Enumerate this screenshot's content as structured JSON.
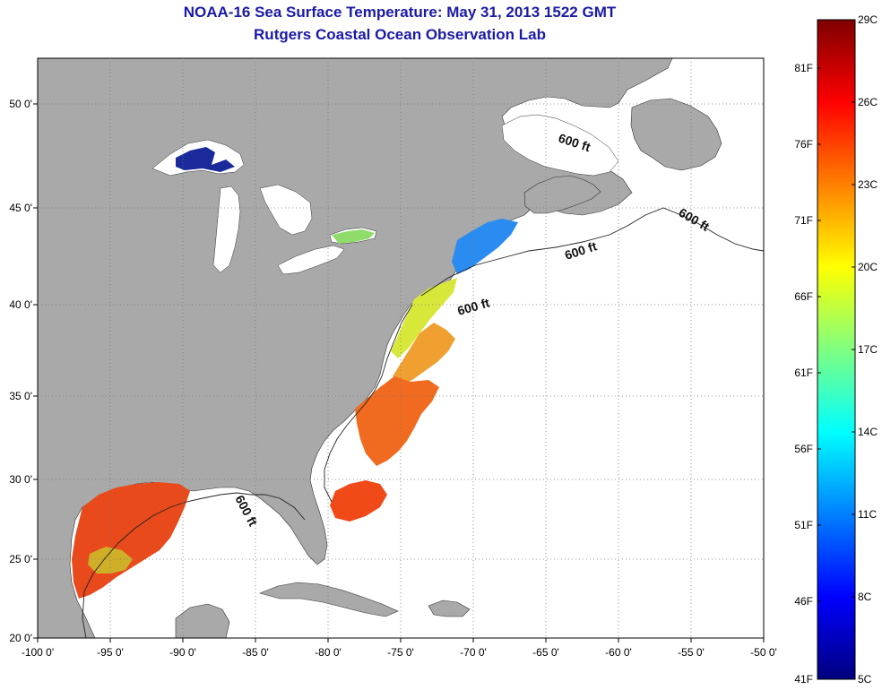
{
  "title": "NOAA-16 Sea Surface Temperature:  May 31, 2013 1522 GMT",
  "subtitle": "Rutgers Coastal Ocean Observation Lab",
  "map": {
    "lon_ticks": [
      "-100 0'",
      "-95 0'",
      "-90 0'",
      "-85 0'",
      "-80 0'",
      "-75 0'",
      "-70 0'",
      "-65 0'",
      "-60 0'",
      "-55 0'",
      "-50 0'"
    ],
    "lat_ticks": [
      "50 0'",
      "45 0'",
      "40 0'",
      "35 0'",
      "30 0'",
      "25 0'",
      "20 0'"
    ],
    "contour_labels": [
      "600 ft",
      "600 ft",
      "600 ft",
      "600 ft",
      "600 ft"
    ],
    "colors": {
      "land": "#a9a9a9",
      "ocean": "#ffffff",
      "grid": "#777777"
    }
  },
  "colorbar": {
    "celsius_labels": [
      "29C",
      "26C",
      "23C",
      "20C",
      "17C",
      "14C",
      "11C",
      "8C",
      "5C"
    ],
    "fahrenheit_labels": [
      "81F",
      "76F",
      "71F",
      "66F",
      "61F",
      "56F",
      "51F",
      "46F",
      "41F"
    ],
    "colors": [
      "#7f0000",
      "#ff0000",
      "#ff8000",
      "#ffff00",
      "#80ff80",
      "#00ffff",
      "#0080ff",
      "#0000ff",
      "#00007f"
    ]
  }
}
